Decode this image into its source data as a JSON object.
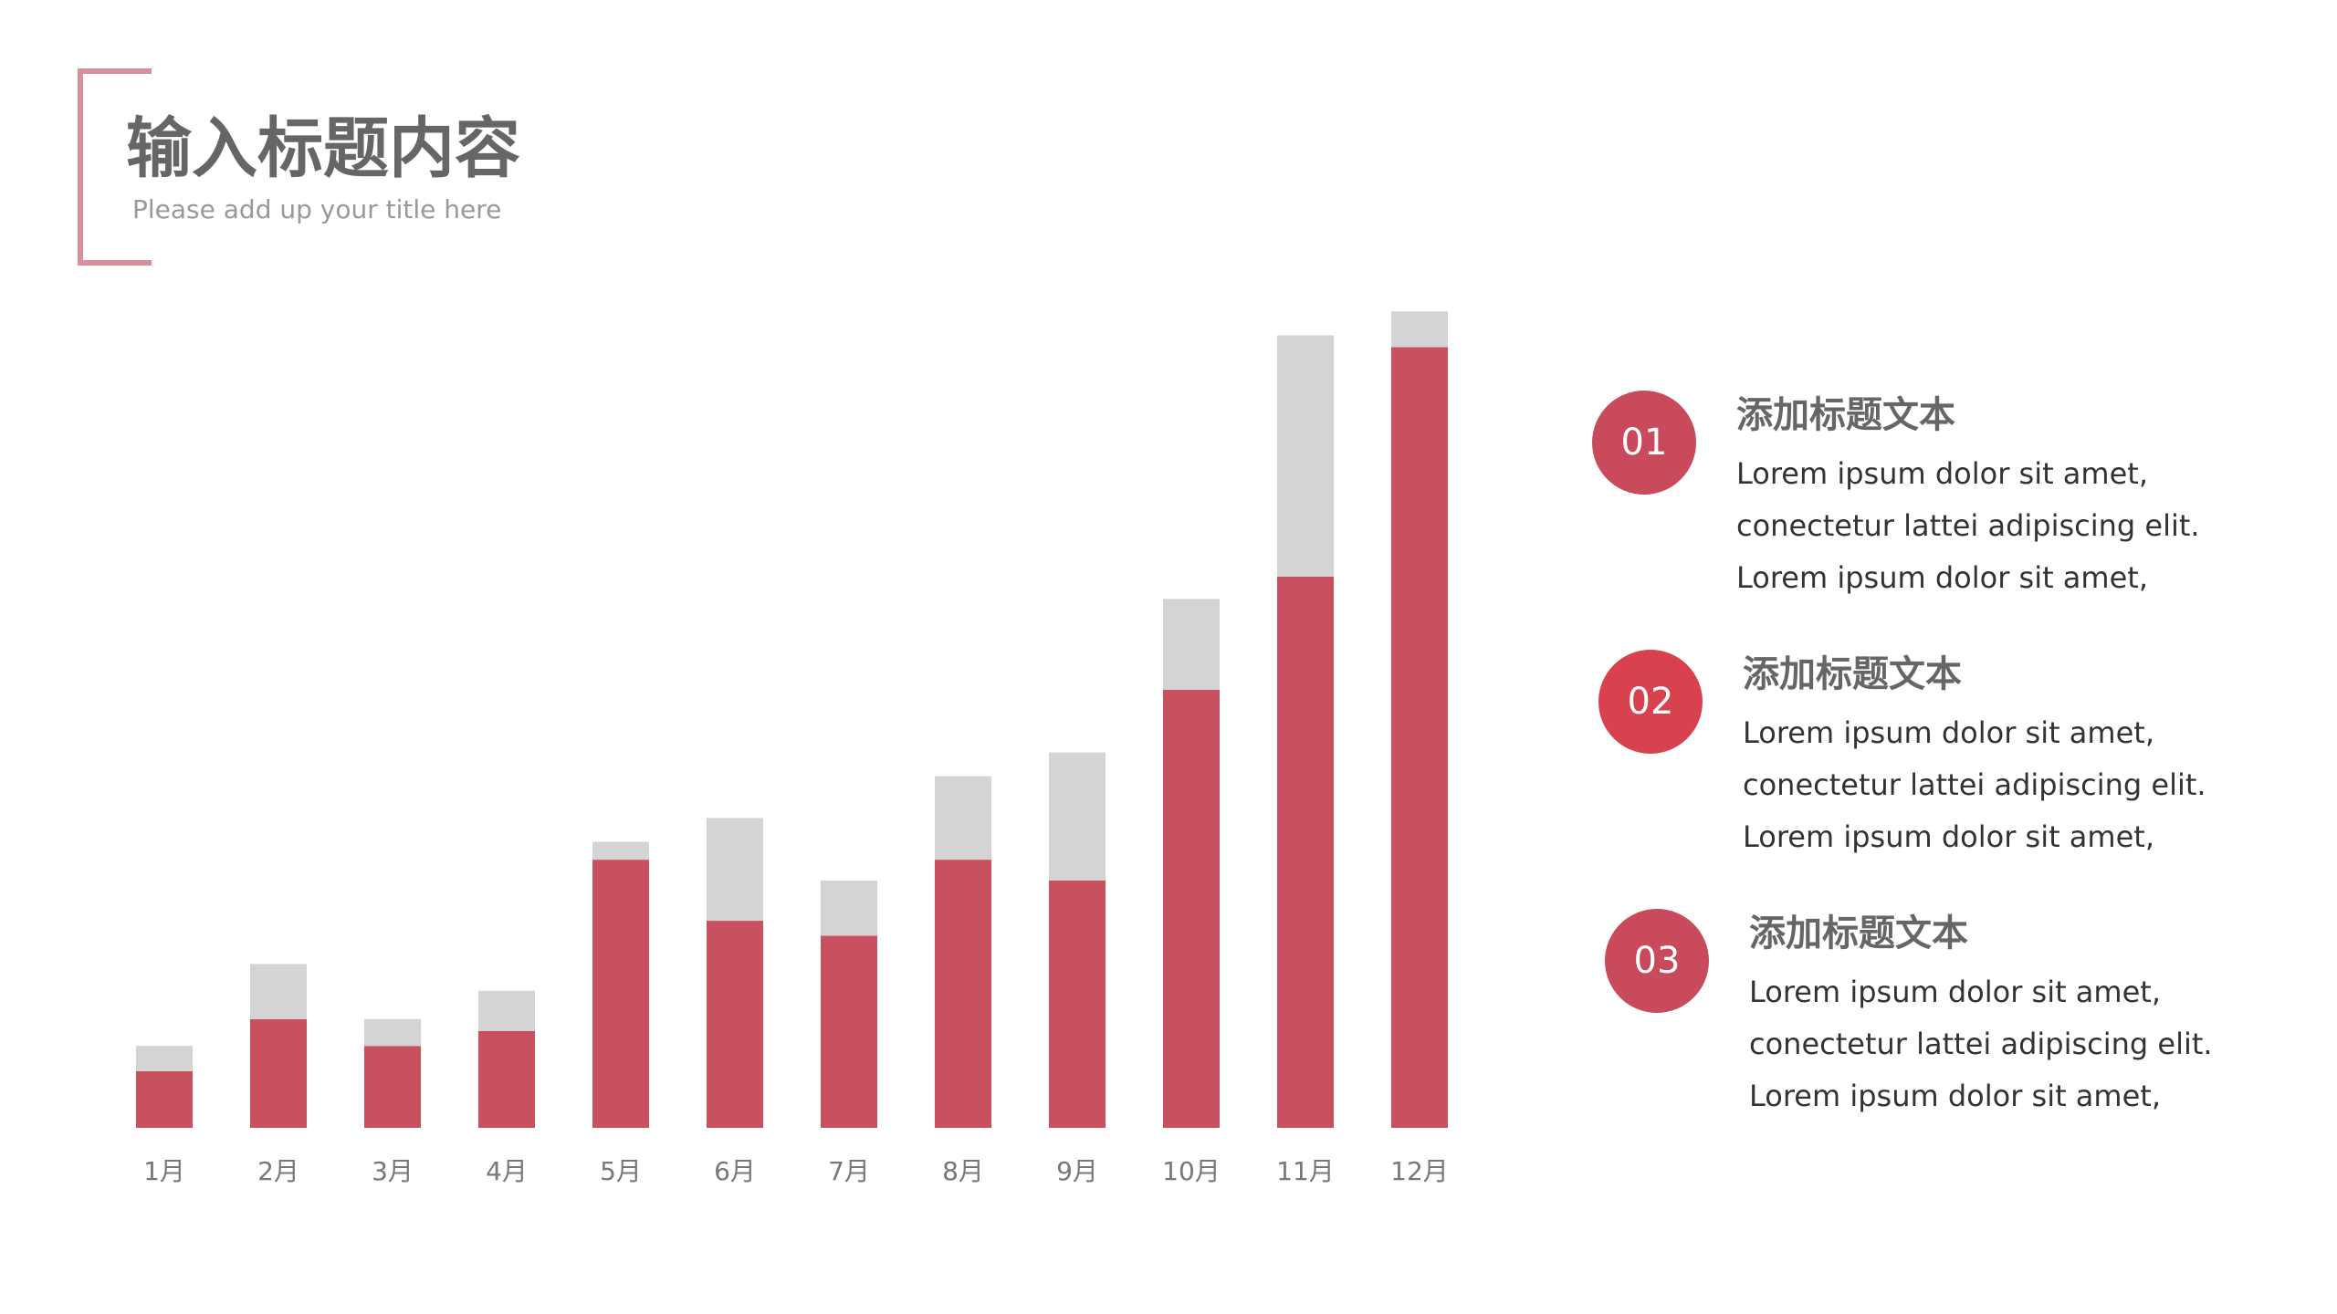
{
  "header": {
    "title": "输入标题内容",
    "subtitle": "Please add up your title here"
  },
  "chart_data": {
    "type": "bar",
    "stacked": true,
    "categories": [
      "1月",
      "2月",
      "3月",
      "4月",
      "5月",
      "6月",
      "7月",
      "8月",
      "9月",
      "10月",
      "11月",
      "12月"
    ],
    "series": [
      {
        "color": "#c9515f",
        "values": [
          38,
          73,
          55,
          65,
          180,
          139,
          129,
          180,
          166,
          294,
          370,
          524
        ]
      },
      {
        "color": "#d4d4d4",
        "values": [
          17,
          37,
          18,
          27,
          12,
          69,
          37,
          56,
          86,
          61,
          162,
          24
        ]
      }
    ],
    "ylim": [
      0,
      550
    ]
  },
  "items": [
    {
      "number": "01",
      "heading": "添加标题文本",
      "lines": [
        "Lorem ipsum dolor sit amet,",
        "conectetur lattei adipiscing elit.",
        "Lorem ipsum dolor sit amet,"
      ]
    },
    {
      "number": "02",
      "heading": "添加标题文本",
      "lines": [
        "Lorem ipsum dolor sit amet,",
        "conectetur lattei adipiscing elit.",
        "Lorem ipsum dolor sit amet,"
      ]
    },
    {
      "number": "03",
      "heading": "添加标题文本",
      "lines": [
        "Lorem ipsum dolor sit amet,",
        "conectetur lattei adipiscing elit.",
        "Lorem ipsum dolor sit amet,"
      ]
    }
  ]
}
